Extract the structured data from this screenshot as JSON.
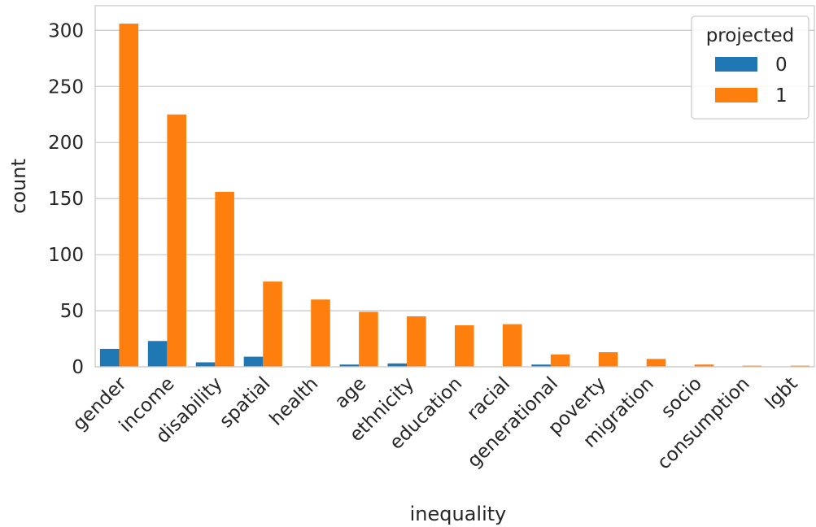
{
  "chart_data": {
    "type": "bar",
    "xlabel": "inequality",
    "ylabel": "count",
    "categories": [
      "gender",
      "income",
      "disability",
      "spatial",
      "health",
      "age",
      "ethnicity",
      "education",
      "racial",
      "generational",
      "poverty",
      "migration",
      "socio",
      "consumption",
      "lgbt"
    ],
    "series": [
      {
        "name": "0",
        "color": "#1f77b4",
        "values": [
          16,
          23,
          4,
          9,
          0,
          2,
          3,
          0,
          0,
          2,
          0,
          0,
          0,
          0,
          0
        ]
      },
      {
        "name": "1",
        "color": "#ff7f0e",
        "values": [
          306,
          225,
          156,
          76,
          60,
          49,
          45,
          37,
          38,
          11,
          13,
          7,
          2,
          1,
          1
        ]
      }
    ],
    "ylim": [
      0,
      322
    ],
    "yticks": [
      0,
      50,
      100,
      150,
      200,
      250,
      300
    ],
    "grid": true,
    "legend": {
      "title": "projected",
      "position": "top-right"
    }
  }
}
